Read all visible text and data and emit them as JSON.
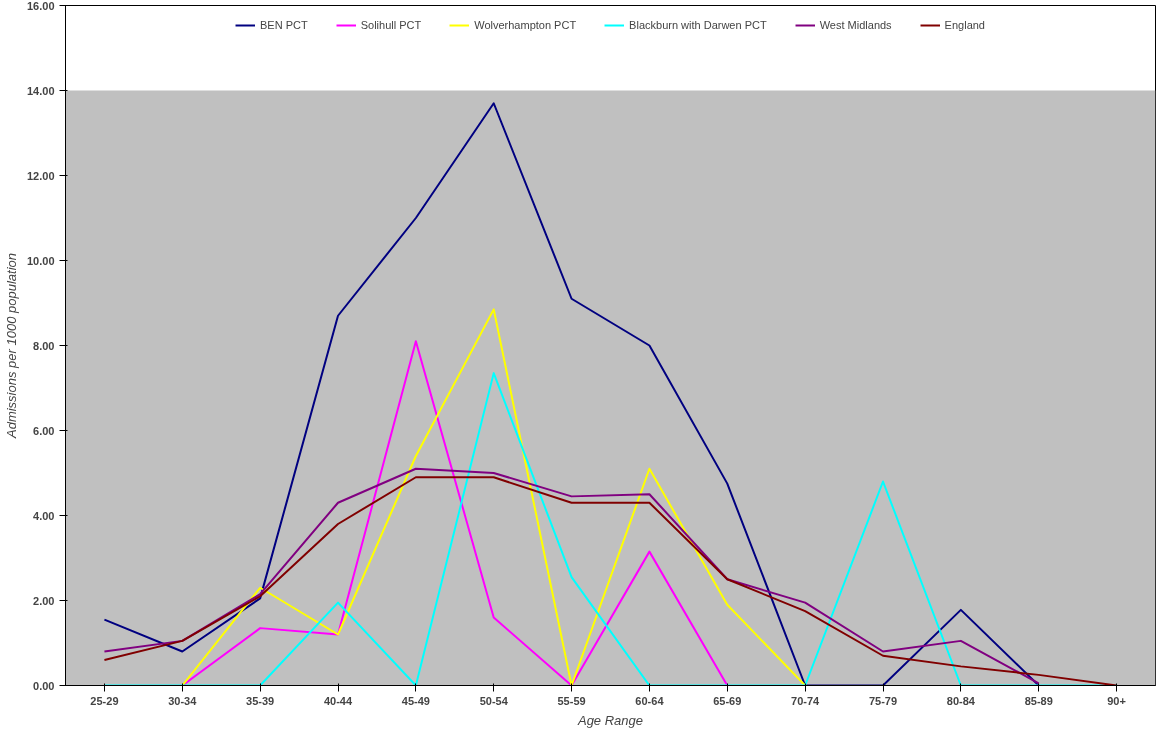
{
  "chart_data": {
    "type": "line",
    "xlabel": "Age Range",
    "ylabel": "Admissions per 1000 population",
    "categories": [
      "25-29",
      "30-34",
      "35-39",
      "40-44",
      "45-49",
      "50-54",
      "55-59",
      "60-64",
      "65-69",
      "70-74",
      "75-79",
      "80-84",
      "85-89",
      "90+"
    ],
    "series": [
      {
        "name": "BEN PCT",
        "color": "#000080",
        "values": [
          1.55,
          0.8,
          2.05,
          8.7,
          11.0,
          13.7,
          9.1,
          8.0,
          4.75,
          0,
          0,
          1.78,
          0,
          null
        ]
      },
      {
        "name": "Solihull PCT",
        "color": "#ff00ff",
        "values": [
          null,
          0,
          1.35,
          1.2,
          8.1,
          1.6,
          0,
          3.15,
          0,
          null,
          null,
          null,
          null,
          null
        ]
      },
      {
        "name": "Wolverhampton PCT",
        "color": "#ffff00",
        "values": [
          null,
          0,
          2.3,
          1.2,
          5.4,
          8.85,
          0,
          5.1,
          1.9,
          0,
          null,
          null,
          null,
          null
        ]
      },
      {
        "name": "Blackburn with Darwen PCT",
        "color": "#00ffff",
        "values": [
          0,
          0,
          0,
          1.95,
          0,
          7.35,
          2.55,
          0,
          0,
          0,
          4.8,
          0,
          0,
          0
        ]
      },
      {
        "name": "West Midlands",
        "color": "#800080",
        "values": [
          0.8,
          1.05,
          2.15,
          4.3,
          5.1,
          5.0,
          4.45,
          4.5,
          2.5,
          1.95,
          0.8,
          1.05,
          0.05,
          null
        ]
      },
      {
        "name": "England",
        "color": "#800000",
        "values": [
          0.6,
          1.05,
          2.1,
          3.8,
          4.9,
          4.9,
          4.3,
          4.3,
          2.5,
          1.75,
          0.7,
          0.45,
          0.25,
          0
        ]
      }
    ],
    "ylim": [
      0,
      16
    ],
    "yticks": [
      {
        "value": 0,
        "label": "0.00"
      },
      {
        "value": 2,
        "label": "2.00"
      },
      {
        "value": 4,
        "label": "4.00"
      },
      {
        "value": 6,
        "label": "6.00"
      },
      {
        "value": 8,
        "label": "8.00"
      },
      {
        "value": 10,
        "label": "10.00"
      },
      {
        "value": 12,
        "label": "12.00"
      },
      {
        "value": 14,
        "label": "14.00"
      },
      {
        "value": 16,
        "label": "16.00"
      }
    ],
    "bands": [
      {
        "axis": "y",
        "from": 0,
        "to": 14,
        "color": "#c0c0c0"
      }
    ],
    "legend": "top",
    "marker": "none",
    "line_style": "solid"
  }
}
